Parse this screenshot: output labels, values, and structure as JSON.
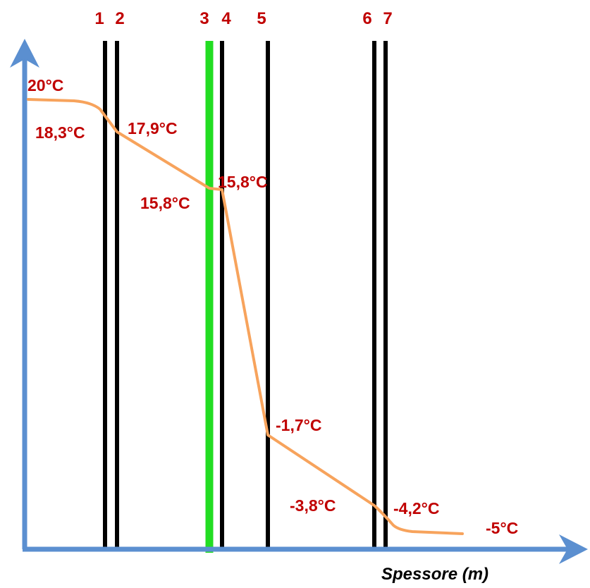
{
  "diagram": {
    "x_axis_label": "Spessore (m)",
    "layers": [
      {
        "number": "1",
        "color": "#000000"
      },
      {
        "number": "2",
        "color": "#000000"
      },
      {
        "number": "3",
        "color": "#22dd22"
      },
      {
        "number": "4",
        "color": "#000000"
      },
      {
        "number": "5",
        "color": "#000000"
      },
      {
        "number": "6",
        "color": "#000000"
      },
      {
        "number": "7",
        "color": "#000000"
      }
    ],
    "temperatures": [
      {
        "label": "20°C"
      },
      {
        "label": "18,3°C"
      },
      {
        "label": "17,9°C"
      },
      {
        "label": "15,8°C"
      },
      {
        "label": "15,8°C"
      },
      {
        "label": "-1,7°C"
      },
      {
        "label": "-3,8°C"
      },
      {
        "label": "-4,2°C"
      },
      {
        "label": "-5°C"
      }
    ],
    "colors": {
      "axis": "#5b8fd0",
      "profile_line": "#f7a35c",
      "label_text": "#c00000",
      "interface_line": "#000000",
      "highlight_layer": "#22dd22"
    }
  }
}
